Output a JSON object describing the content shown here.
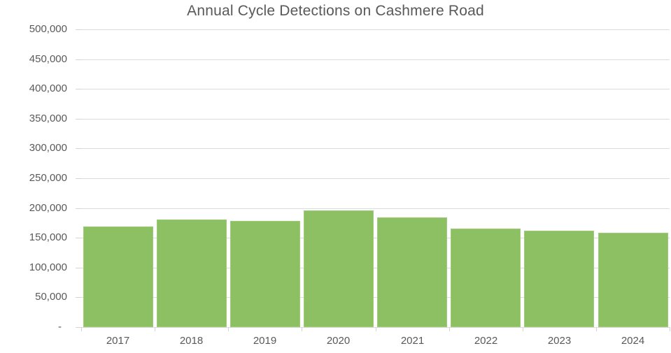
{
  "chart_data": {
    "type": "bar",
    "title": "Annual Cycle Detections on Cashmere Road",
    "categories": [
      "2017",
      "2018",
      "2019",
      "2020",
      "2021",
      "2022",
      "2023",
      "2024"
    ],
    "values": [
      169000,
      181000,
      178500,
      196500,
      184000,
      165500,
      162000,
      158500
    ],
    "xlabel": "",
    "ylabel": "",
    "ylim": [
      0,
      500000
    ],
    "ytick_step": 50000,
    "ytick_labels": [
      "-",
      "50,000",
      "100,000",
      "150,000",
      "200,000",
      "250,000",
      "300,000",
      "350,000",
      "400,000",
      "450,000",
      "500,000"
    ],
    "grid": true,
    "legend": false,
    "bar_gap_ratio": 0.05
  },
  "colors": {
    "bar_fill": "#8CC063",
    "gridline": "#DBDBDB",
    "axis_text": "#595959",
    "title_text": "#595959",
    "background": "#FFFFFF"
  }
}
